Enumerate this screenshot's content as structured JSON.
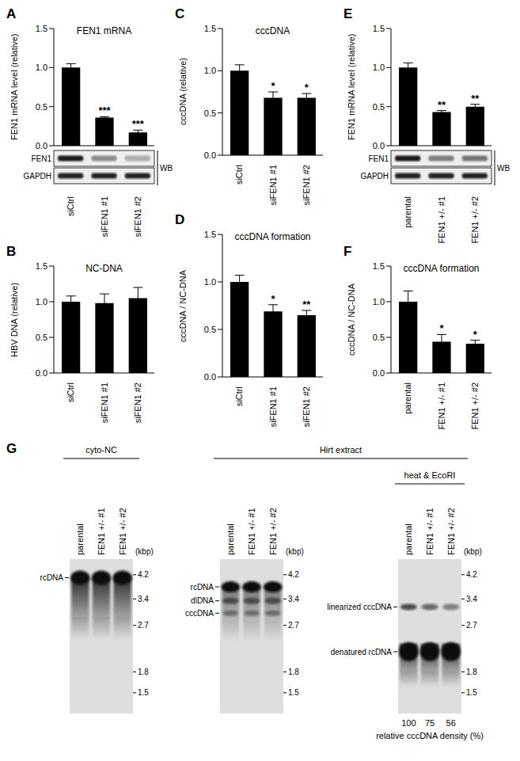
{
  "chart_data": [
    {
      "panel": "A",
      "type": "bar",
      "title": "FEN1 mRNA",
      "ylabel": "FEN1 mRNA level (relative)",
      "categories": [
        "siCtrl",
        "siFEN1 #1",
        "siFEN1 #2"
      ],
      "values": [
        1.0,
        0.36,
        0.17
      ],
      "errors": [
        0.05,
        0.01,
        0.03
      ],
      "significance": [
        null,
        "***",
        "***"
      ],
      "color": "#000000",
      "ylim": [
        0,
        1.5
      ],
      "yticks": [
        {
          "value": 0,
          "label": "0.0"
        },
        {
          "value": 0.5,
          "label": "0.5"
        },
        {
          "value": 1,
          "label": "1.0"
        },
        {
          "value": 1.5,
          "label": "1.5"
        }
      ],
      "blot": {
        "rows": [
          "FEN1",
          "GAPDH"
        ],
        "label": "WB"
      }
    },
    {
      "panel": "B",
      "type": "bar",
      "title": "NC-DNA",
      "ylabel": "HBV DNA (relative)",
      "categories": [
        "siCtrl",
        "siFEN1 #1",
        "siFEN1 #2"
      ],
      "values": [
        1.0,
        0.98,
        1.05
      ],
      "errors": [
        0.08,
        0.13,
        0.15
      ],
      "color": "#000000",
      "ylim": [
        0,
        1.5
      ],
      "yticks": [
        {
          "value": 0,
          "label": "0.0"
        },
        {
          "value": 0.5,
          "label": "0.5"
        },
        {
          "value": 1,
          "label": "1.0"
        },
        {
          "value": 1.5,
          "label": "1.5"
        }
      ]
    },
    {
      "panel": "C",
      "type": "bar",
      "title": "cccDNA",
      "ylabel": "cccDNA (relative)",
      "categories": [
        "siCtrl",
        "siFEN1 #1",
        "siFEN1 #2"
      ],
      "values": [
        1.0,
        0.68,
        0.68
      ],
      "errors": [
        0.07,
        0.07,
        0.05
      ],
      "significance": [
        null,
        "*",
        "*"
      ],
      "color": "#000000",
      "ylim": [
        0,
        1.5
      ],
      "yticks": [
        {
          "value": 0,
          "label": "0.0"
        },
        {
          "value": 0.5,
          "label": "0.5"
        },
        {
          "value": 1,
          "label": "1.0"
        },
        {
          "value": 1.5,
          "label": "1.5"
        }
      ]
    },
    {
      "panel": "D",
      "type": "bar",
      "title": "cccDNA formation",
      "ylabel": "cccDNA / NC-DNA",
      "categories": [
        "siCtrl",
        "siFEN1 #1",
        "siFEN1 #2"
      ],
      "values": [
        1.0,
        0.69,
        0.65
      ],
      "errors": [
        0.07,
        0.07,
        0.05
      ],
      "significance": [
        null,
        "*",
        "**"
      ],
      "color": "#000000",
      "ylim": [
        0,
        1.5
      ],
      "yticks": [
        {
          "value": 0,
          "label": "0.0"
        },
        {
          "value": 0.5,
          "label": "0.5"
        },
        {
          "value": 1,
          "label": "1.0"
        },
        {
          "value": 1.5,
          "label": "1.5"
        }
      ]
    },
    {
      "panel": "E",
      "type": "bar",
      "ylabel": "FEN1 mRNA level (relative)",
      "categories": [
        "parental",
        "FEN1 +/- #1",
        "FEN1 +/- #2"
      ],
      "values": [
        1.0,
        0.43,
        0.5
      ],
      "errors": [
        0.06,
        0.02,
        0.03
      ],
      "significance": [
        null,
        "**",
        "**"
      ],
      "color": "#000000",
      "ylim": [
        0,
        1.5
      ],
      "yticks": [
        {
          "value": 0,
          "label": "0.0"
        },
        {
          "value": 0.5,
          "label": "0.5"
        },
        {
          "value": 1,
          "label": "1.0"
        },
        {
          "value": 1.5,
          "label": "1.5"
        }
      ],
      "blot": {
        "rows": [
          "FEN1",
          "GAPDH"
        ],
        "label": "WB"
      }
    },
    {
      "panel": "F",
      "type": "bar",
      "title": "cccDNA formation",
      "ylabel": "cccDNA / NC-DNA",
      "categories": [
        "parental",
        "FEN1 +/- #1",
        "FEN1 +/- #2"
      ],
      "values": [
        1.0,
        0.44,
        0.41
      ],
      "errors": [
        0.15,
        0.1,
        0.05
      ],
      "significance": [
        null,
        "*",
        "*"
      ],
      "color": "#000000",
      "ylim": [
        0,
        1.5
      ],
      "yticks": [
        {
          "value": 0,
          "label": "0.0"
        },
        {
          "value": 0.5,
          "label": "0.5"
        },
        {
          "value": 1,
          "label": "1.0"
        },
        {
          "value": 1.5,
          "label": "1.5"
        }
      ]
    }
  ],
  "gel_panel": {
    "panel": "G",
    "lanes": [
      "parental",
      "FEN1 +/- #1",
      "FEN1 +/- #2"
    ],
    "size_unit": "(kbp)",
    "size_markers": [
      4.2,
      3.4,
      2.7,
      1.8,
      1.5
    ],
    "groups": [
      {
        "title": "cyto-NC",
        "gels": [
          {
            "band_labels": [
              "rcDNA"
            ]
          }
        ]
      },
      {
        "title": "Hirt extract",
        "gels": [
          {
            "band_labels": [
              "rcDNA",
              "dlDNA",
              "cccDNA"
            ]
          },
          {
            "title": "heat & EcoRI",
            "band_labels": [
              "linearized cccDNA",
              "denatured rcDNA"
            ],
            "density_values": [
              100,
              75,
              56
            ],
            "density_label": "relative cccDNA density (%)"
          }
        ]
      }
    ]
  }
}
